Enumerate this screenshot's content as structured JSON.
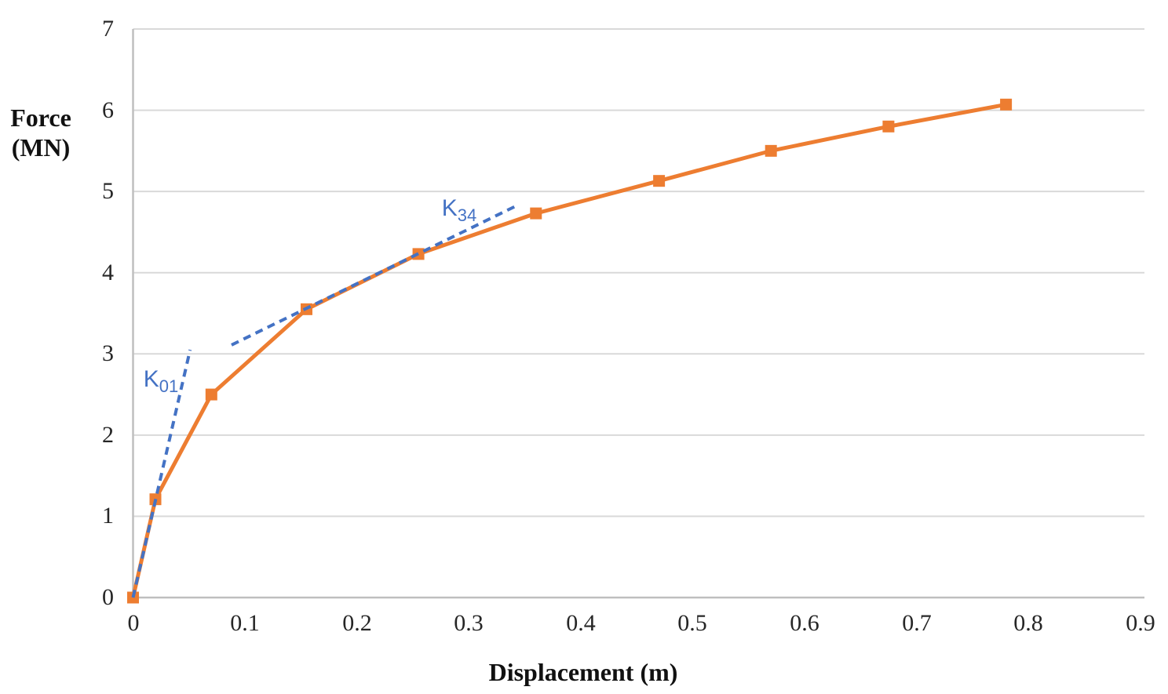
{
  "chart_data": {
    "type": "line",
    "title": "",
    "xlabel": "Displacement (m)",
    "ylabel": "Force (MN)",
    "ylabel_lines": [
      "Force",
      "(MN)"
    ],
    "xlim": [
      0,
      0.9
    ],
    "ylim": [
      0,
      7
    ],
    "xticks": [
      0,
      0.1,
      0.2,
      0.3,
      0.4,
      0.5,
      0.6,
      0.7,
      0.8,
      0.9
    ],
    "xtick_labels": [
      "0",
      "0.1",
      "0.2",
      "0.3",
      "0.4",
      "0.5",
      "0.6",
      "0.7",
      "0.8",
      "0.9"
    ],
    "yticks": [
      0,
      1,
      2,
      3,
      4,
      5,
      6,
      7
    ],
    "ytick_labels": [
      "0",
      "1",
      "2",
      "3",
      "4",
      "5",
      "6",
      "7"
    ],
    "grid": "horizontal-only",
    "legend": "none",
    "series": [
      {
        "name": "force-displacement curve",
        "type": "line",
        "marker": "square",
        "color": "#ED7D31",
        "x": [
          0,
          0.02,
          0.07,
          0.155,
          0.255,
          0.36,
          0.47,
          0.57,
          0.675,
          0.78
        ],
        "y": [
          0,
          1.21,
          2.5,
          3.55,
          4.23,
          4.73,
          5.13,
          5.5,
          5.8,
          6.07
        ]
      }
    ],
    "secant_lines": [
      {
        "label_base": "K",
        "label_sub": "01",
        "color": "#4472C4",
        "style": "dashed",
        "x": [
          0,
          0.051
        ],
        "y": [
          0,
          3.05
        ]
      },
      {
        "label_base": "K",
        "label_sub": "34",
        "color": "#4472C4",
        "style": "dashed",
        "x": [
          0.088,
          0.345
        ],
        "y": [
          3.11,
          4.84
        ]
      }
    ],
    "colors": {
      "series": "#ED7D31",
      "secant": "#4472C4",
      "gridline": "#D9D9D9",
      "axis": "#BFBFBF",
      "text": "#262626"
    }
  }
}
